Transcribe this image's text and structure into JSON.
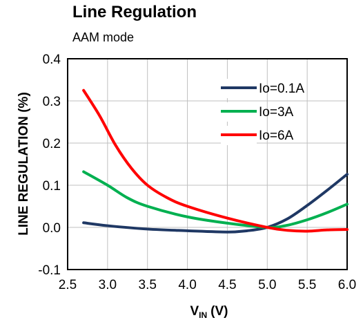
{
  "chart_data": {
    "type": "line",
    "title": "Line Regulation",
    "subtitle": "AAM mode",
    "xlabel_main": "V",
    "xlabel_sub": "IN",
    "xlabel_unit": "(V)",
    "ylabel": "LINE REGULATION (%)",
    "xlim": [
      2.5,
      6.0
    ],
    "ylim": [
      -0.1,
      0.4
    ],
    "xticks": [
      "2.5",
      "3.0",
      "3.5",
      "4.0",
      "4.5",
      "5.0",
      "5.5",
      "6.0"
    ],
    "yticks": [
      "-0.1",
      "0.0",
      "0.1",
      "0.2",
      "0.3",
      "0.4"
    ],
    "grid": true,
    "legend_position": "top-right",
    "series": [
      {
        "name": "Io=0.1A",
        "color": "#1f3864",
        "x": [
          2.7,
          3.0,
          3.5,
          4.0,
          4.5,
          4.75,
          5.0,
          5.25,
          5.5,
          5.75,
          6.0
        ],
        "y": [
          0.011,
          0.004,
          -0.004,
          -0.008,
          -0.011,
          -0.008,
          0.0,
          0.02,
          0.052,
          0.088,
          0.126
        ]
      },
      {
        "name": "Io=3A",
        "color": "#00b050",
        "x": [
          2.7,
          3.0,
          3.25,
          3.5,
          4.0,
          4.5,
          5.0,
          5.25,
          5.5,
          5.75,
          6.0
        ],
        "y": [
          0.132,
          0.1,
          0.07,
          0.05,
          0.025,
          0.01,
          0.0,
          0.005,
          0.018,
          0.035,
          0.055
        ]
      },
      {
        "name": "Io=6A",
        "color": "#ff0000",
        "x": [
          2.7,
          2.9,
          3.1,
          3.3,
          3.5,
          3.75,
          4.0,
          4.5,
          5.0,
          5.25,
          5.5,
          5.75,
          6.0
        ],
        "y": [
          0.325,
          0.265,
          0.195,
          0.14,
          0.1,
          0.07,
          0.05,
          0.022,
          0.0,
          -0.007,
          -0.009,
          -0.006,
          -0.005
        ]
      }
    ]
  }
}
